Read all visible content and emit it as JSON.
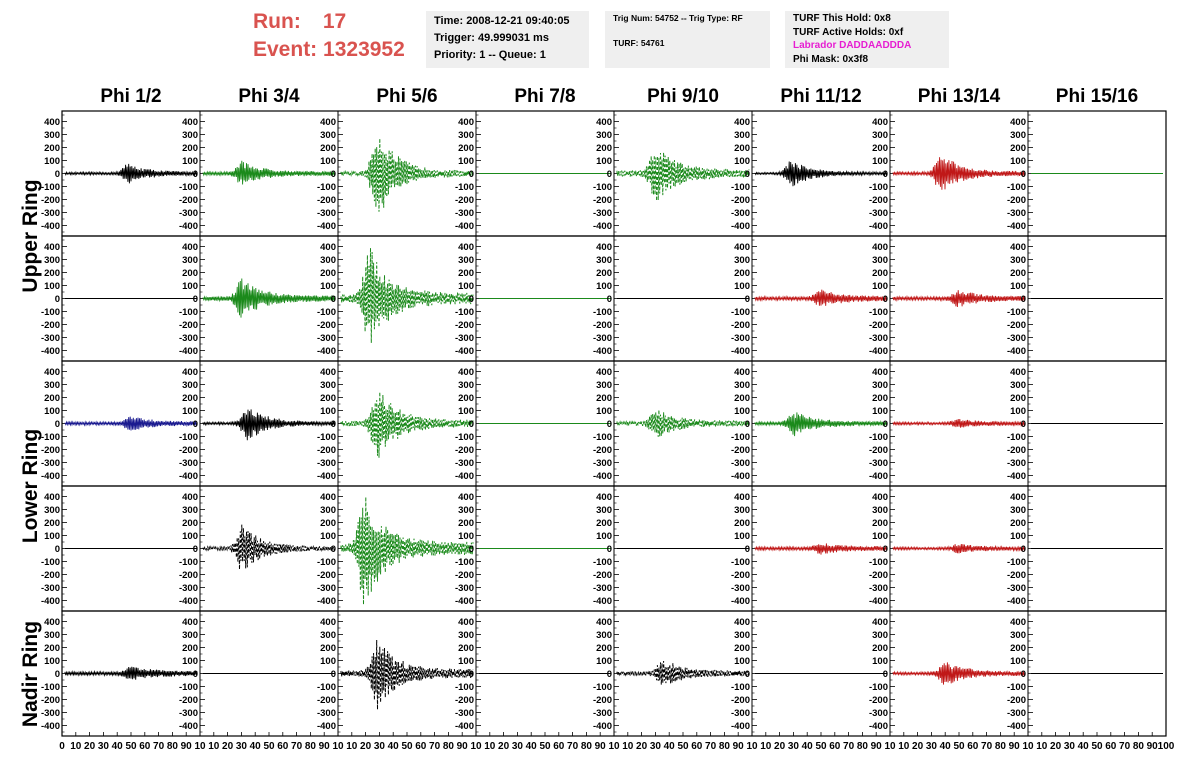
{
  "header": {
    "run_label": "Run:",
    "run_value": "17",
    "event_label": "Event:",
    "event_value": "1323952"
  },
  "info_time": {
    "time": "Time: 2008-12-21 09:40:05",
    "trigger": "Trigger: 49.999031 ms",
    "priority": "Priority: 1 -- Queue: 1"
  },
  "info_trig": {
    "trig": "Trig Num: 54752 -- Trig Type: RF",
    "turf": "TURF: 54761"
  },
  "info_turf": {
    "this_hold": "TURF This Hold: 0x8",
    "active_holds": "TURF Active Holds: 0xf",
    "labrador": "Labrador DADDAADDDA",
    "phi_mask": "Phi Mask: 0x3f8"
  },
  "columns": [
    "Phi 1/2",
    "Phi 3/4",
    "Phi 5/6",
    "Phi 7/8",
    "Phi 9/10",
    "Phi 11/12",
    "Phi 13/14",
    "Phi 15/16"
  ],
  "rings": [
    "Upper Ring",
    "Lower Ring",
    "Nadir Ring"
  ],
  "colors": {
    "black": "#000000",
    "green": "#1b8a1b",
    "red": "#c01818",
    "blue": "#1a1a90",
    "run_red": "#d9534f",
    "magenta": "#e61ed2"
  },
  "chart_data": {
    "type": "line",
    "ylim": [
      -450,
      450
    ],
    "yticks": [
      -400,
      -300,
      -200,
      -100,
      0,
      100,
      200,
      300,
      400
    ],
    "xlim": [
      0,
      100
    ],
    "xticks": [
      0,
      10,
      20,
      30,
      40,
      50,
      60,
      70,
      80,
      90,
      100
    ],
    "bottom_axis_text": "0 10 20 30 40 50 60 70 80 90 10",
    "last_axis_text": "0 10 20 30 40 50 60 70 80 90 100",
    "rows": [
      [
        {
          "color": "black",
          "dashed": false,
          "peak": 80,
          "center": 48,
          "base": 25
        },
        {
          "color": "green",
          "dashed": false,
          "peak": 100,
          "center": 30,
          "base": 30
        },
        {
          "color": "green",
          "dashed": true,
          "peak": 360,
          "center": 28,
          "base": 40
        },
        {
          "color": "green",
          "dashed": false,
          "peak": 0,
          "center": 50,
          "base": 0
        },
        {
          "color": "green",
          "dashed": true,
          "peak": 230,
          "center": 30,
          "base": 60
        },
        {
          "color": "black",
          "dashed": false,
          "peak": 110,
          "center": 28,
          "base": 20
        },
        {
          "color": "red",
          "dashed": false,
          "peak": 160,
          "center": 37,
          "base": 30
        },
        {
          "color": "green",
          "dashed": false,
          "peak": 0,
          "center": 50,
          "base": 0
        }
      ],
      [
        {
          "color": "black",
          "dashed": false,
          "peak": 0,
          "center": 50,
          "base": 0
        },
        {
          "color": "green",
          "dashed": false,
          "peak": 160,
          "center": 30,
          "base": 40
        },
        {
          "color": "green",
          "dashed": true,
          "peak": 400,
          "center": 22,
          "base": 80
        },
        {
          "color": "green",
          "dashed": false,
          "peak": 0,
          "center": 50,
          "base": 0
        },
        {
          "color": "black",
          "dashed": false,
          "peak": 0,
          "center": 50,
          "base": 0
        },
        {
          "color": "red",
          "dashed": false,
          "peak": 70,
          "center": 50,
          "base": 35
        },
        {
          "color": "red",
          "dashed": false,
          "peak": 70,
          "center": 50,
          "base": 35
        },
        {
          "color": "black",
          "dashed": false,
          "peak": 0,
          "center": 50,
          "base": 0
        }
      ],
      [
        {
          "color": "blue",
          "dashed": false,
          "peak": 60,
          "center": 50,
          "base": 30
        },
        {
          "color": "black",
          "dashed": false,
          "peak": 140,
          "center": 34,
          "base": 25
        },
        {
          "color": "green",
          "dashed": true,
          "peak": 300,
          "center": 28,
          "base": 50
        },
        {
          "color": "green",
          "dashed": false,
          "peak": 0,
          "center": 50,
          "base": 0
        },
        {
          "color": "green",
          "dashed": true,
          "peak": 120,
          "center": 30,
          "base": 40
        },
        {
          "color": "green",
          "dashed": false,
          "peak": 100,
          "center": 30,
          "base": 30
        },
        {
          "color": "red",
          "dashed": false,
          "peak": 40,
          "center": 50,
          "base": 25
        },
        {
          "color": "black",
          "dashed": false,
          "peak": 0,
          "center": 50,
          "base": 0
        }
      ],
      [
        {
          "color": "black",
          "dashed": false,
          "peak": 0,
          "center": 50,
          "base": 0
        },
        {
          "color": "black",
          "dashed": true,
          "peak": 190,
          "center": 30,
          "base": 30
        },
        {
          "color": "green",
          "dashed": true,
          "peak": 460,
          "center": 18,
          "base": 90
        },
        {
          "color": "green",
          "dashed": false,
          "peak": 0,
          "center": 50,
          "base": 0
        },
        {
          "color": "black",
          "dashed": false,
          "peak": 0,
          "center": 50,
          "base": 0
        },
        {
          "color": "red",
          "dashed": false,
          "peak": 50,
          "center": 50,
          "base": 30
        },
        {
          "color": "red",
          "dashed": false,
          "peak": 40,
          "center": 50,
          "base": 25
        },
        {
          "color": "black",
          "dashed": false,
          "peak": 0,
          "center": 50,
          "base": 0
        }
      ],
      [
        {
          "color": "black",
          "dashed": false,
          "peak": 60,
          "center": 50,
          "base": 35
        },
        {
          "color": "black",
          "dashed": false,
          "peak": 0,
          "center": 50,
          "base": 0
        },
        {
          "color": "black",
          "dashed": true,
          "peak": 280,
          "center": 28,
          "base": 60
        },
        {
          "color": "black",
          "dashed": false,
          "peak": 0,
          "center": 50,
          "base": 0
        },
        {
          "color": "black",
          "dashed": true,
          "peak": 120,
          "center": 35,
          "base": 40
        },
        {
          "color": "black",
          "dashed": false,
          "peak": 0,
          "center": 50,
          "base": 0
        },
        {
          "color": "red",
          "dashed": false,
          "peak": 100,
          "center": 40,
          "base": 30
        },
        {
          "color": "black",
          "dashed": false,
          "peak": 0,
          "center": 50,
          "base": 0
        }
      ]
    ]
  }
}
